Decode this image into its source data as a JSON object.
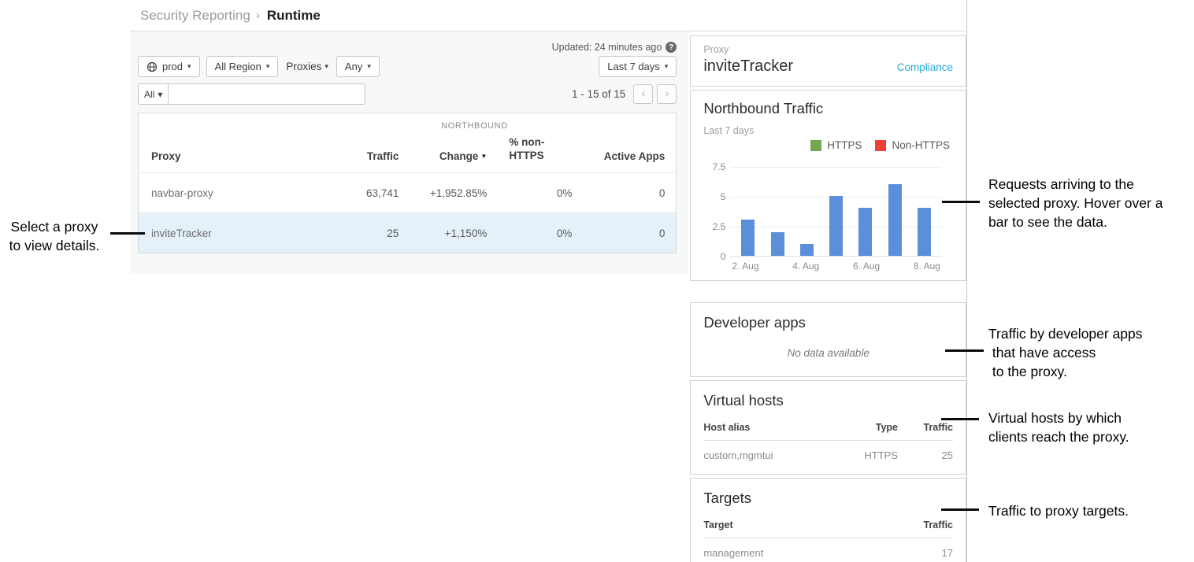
{
  "breadcrumb": {
    "parent": "Security Reporting",
    "separator": "›",
    "current": "Runtime"
  },
  "toolbar": {
    "updated": "Updated: 24 minutes ago",
    "help_glyph": "?",
    "env_button": "prod",
    "region_button": "All Region",
    "proxies_button": "Proxies",
    "any_button": "Any",
    "date_range_button": "Last 7 days",
    "filter_all_button": "All",
    "search_value": "",
    "pagination": "1 - 15 of 15",
    "prev_glyph": "‹",
    "next_glyph": "›"
  },
  "table": {
    "group_header": "NORTHBOUND",
    "col_proxy": "Proxy",
    "col_traffic": "Traffic",
    "col_change": "Change",
    "col_non_https_line1": "% non-",
    "col_non_https_line2": "HTTPS",
    "col_active_apps": "Active Apps",
    "rows": [
      {
        "proxy": "navbar-proxy",
        "traffic": "63,741",
        "change": "+1,952.85%",
        "non_https": "0%",
        "active_apps": "0",
        "selected": false
      },
      {
        "proxy": "inviteTracker",
        "traffic": "25",
        "change": "+1,150%",
        "non_https": "0%",
        "active_apps": "0",
        "selected": true
      }
    ]
  },
  "detail": {
    "proxy_label": "Proxy",
    "proxy_name": "inviteTracker",
    "compliance_link": "Compliance",
    "developer_apps": {
      "title": "Developer apps",
      "empty_text": "No data available"
    },
    "virtual_hosts": {
      "title": "Virtual hosts",
      "col_host_alias": "Host alias",
      "col_type": "Type",
      "col_traffic": "Traffic",
      "rows": [
        {
          "host_alias": "custom,mgmtui",
          "type": "HTTPS",
          "traffic": "25"
        }
      ]
    },
    "targets": {
      "title": "Targets",
      "col_target": "Target",
      "col_traffic": "Traffic",
      "rows": [
        {
          "target": "management",
          "traffic": "17"
        }
      ]
    }
  },
  "chart_data": {
    "type": "bar",
    "title": "Northbound Traffic",
    "subtitle": "Last 7 days",
    "categories": [
      "2. Aug",
      "3. Aug",
      "4. Aug",
      "5. Aug",
      "6. Aug",
      "7. Aug",
      "8. Aug"
    ],
    "values": [
      3,
      2,
      1,
      5,
      4,
      6,
      4
    ],
    "x_tick_labels": [
      "2. Aug",
      "4. Aug",
      "6. Aug",
      "8. Aug"
    ],
    "y_ticks": [
      "0",
      "2.5",
      "5",
      "7.5"
    ],
    "ylim": [
      0,
      7.5
    ],
    "grid": true,
    "legend_position": "top-right",
    "bar_color": "#5b8edb",
    "legend": [
      {
        "label": "HTTPS",
        "color": "#74a850"
      },
      {
        "label": "Non-HTTPS",
        "color": "#ee4037"
      }
    ]
  },
  "annotations": {
    "select_proxy": {
      "lines": [
        "Select a proxy",
        "to view details."
      ]
    },
    "requests": {
      "lines": [
        "Requests arriving to the",
        "selected proxy. Hover over a",
        "bar to see the data."
      ]
    },
    "dev_apps": {
      "lines": [
        "Traffic by developer apps",
        " that have access",
        " to the proxy."
      ]
    },
    "vhosts": {
      "lines": [
        "Virtual hosts by which",
        "clients reach the proxy."
      ]
    },
    "targets": {
      "lines": [
        "Traffic to proxy targets."
      ]
    }
  }
}
